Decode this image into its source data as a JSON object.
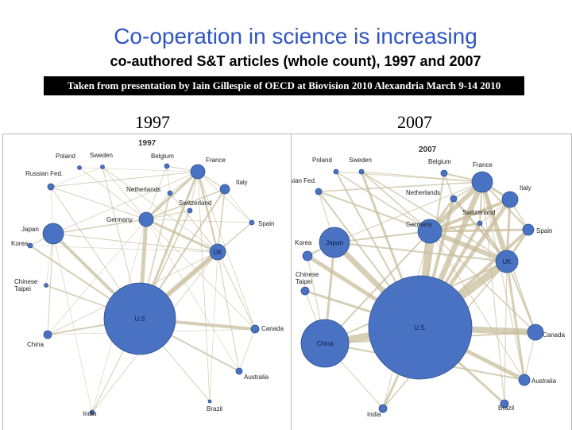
{
  "header": {
    "title": "Co-operation in science is increasing",
    "subtitle": "co-authored S&T articles (whole count), 1997 and 2007",
    "source": "Taken from presentation by Iain Gillespie of OECD at Biovision 2010 Alexandria March 9-14 2010",
    "year_left": "1997",
    "year_right": "2007"
  },
  "colors": {
    "title": "#2f55c4",
    "node_fill": "#4a72c2",
    "node_stroke": "#2e528f",
    "edge": "#c8bd9c"
  },
  "panels": [
    {
      "year_label": "1997",
      "nodes": [
        {
          "id": "poland",
          "label": "Poland",
          "inside": false
        },
        {
          "id": "sweden",
          "label": "Sweden",
          "inside": false
        },
        {
          "id": "belgium",
          "label": "Belgium",
          "inside": false
        },
        {
          "id": "france",
          "label": "France",
          "inside": false
        },
        {
          "id": "russia",
          "label": "Russian Fed.",
          "inside": false
        },
        {
          "id": "italy",
          "label": "Italy",
          "inside": false
        },
        {
          "id": "netherlands",
          "label": "Netherlands",
          "inside": false
        },
        {
          "id": "switzerland",
          "label": "Switzerland",
          "inside": false
        },
        {
          "id": "germany",
          "label": "Germany",
          "inside": false
        },
        {
          "id": "spain",
          "label": "Spain",
          "inside": false
        },
        {
          "id": "japan",
          "label": "Japan",
          "inside": false
        },
        {
          "id": "korea",
          "label": "Korea",
          "inside": false
        },
        {
          "id": "uk",
          "label": "UK",
          "inside": true
        },
        {
          "id": "taipei",
          "label": "Chinese\nTaipei",
          "inside": false
        },
        {
          "id": "us",
          "label": "U.S",
          "inside": true
        },
        {
          "id": "canada",
          "label": "Canada",
          "inside": false
        },
        {
          "id": "china",
          "label": "China",
          "inside": false
        },
        {
          "id": "australia",
          "label": "Australia",
          "inside": false
        },
        {
          "id": "brazil",
          "label": "Brazil",
          "inside": false
        },
        {
          "id": "india",
          "label": "India",
          "inside": false
        }
      ]
    },
    {
      "year_label": "2007",
      "nodes": [
        {
          "id": "poland",
          "label": "Poland",
          "inside": false
        },
        {
          "id": "sweden",
          "label": "Sweden",
          "inside": false
        },
        {
          "id": "belgium",
          "label": "Belgium",
          "inside": false
        },
        {
          "id": "france",
          "label": "France",
          "inside": false
        },
        {
          "id": "russia",
          "label": "Russian Fed.",
          "inside": false
        },
        {
          "id": "italy",
          "label": "Italy",
          "inside": false
        },
        {
          "id": "netherlands",
          "label": "Netherlands",
          "inside": false
        },
        {
          "id": "switzerland",
          "label": "Switzerland",
          "inside": false
        },
        {
          "id": "germany",
          "label": "Germany",
          "inside": false
        },
        {
          "id": "spain",
          "label": "Spain",
          "inside": false
        },
        {
          "id": "japan",
          "label": "Japan",
          "inside": true
        },
        {
          "id": "korea",
          "label": "Korea",
          "inside": false
        },
        {
          "id": "uk",
          "label": "UK",
          "inside": true
        },
        {
          "id": "taipei",
          "label": "Chinese\nTaipei",
          "inside": false
        },
        {
          "id": "us",
          "label": "U.S.",
          "inside": true
        },
        {
          "id": "canada",
          "label": "Canada",
          "inside": false
        },
        {
          "id": "china",
          "label": "China",
          "inside": true
        },
        {
          "id": "australia",
          "label": "Australia",
          "inside": false
        },
        {
          "id": "brazil",
          "label": "Brazil",
          "inside": false
        },
        {
          "id": "india",
          "label": "India",
          "inside": false
        }
      ]
    }
  ]
}
